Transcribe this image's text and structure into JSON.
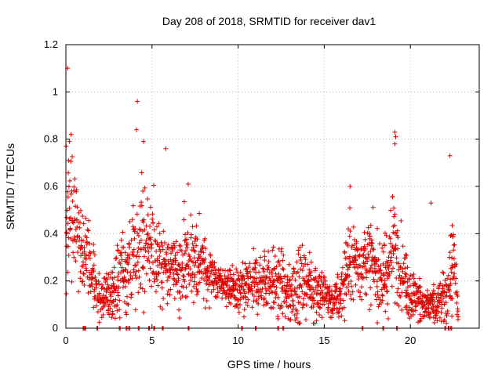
{
  "chart_data": {
    "type": "scatter",
    "title": "Day 208 of 2018, SRMTID for receiver dav1",
    "xlabel": "GPS time / hours",
    "ylabel": "SRMTID / TECUs",
    "xlim": [
      0,
      24
    ],
    "ylim": [
      0,
      1.2
    ],
    "x_ticks": [
      0,
      5,
      10,
      15,
      20
    ],
    "y_ticks": [
      0,
      0.2,
      0.4,
      0.6,
      0.8,
      1,
      1.2
    ],
    "x_tick_labels": [
      "0",
      "5",
      "10",
      "15",
      "20"
    ],
    "y_tick_labels": [
      "0",
      "0.2",
      "0.4",
      "0.6",
      "0.8",
      "1",
      "1.2"
    ],
    "grid": true,
    "marker": "+",
    "series": [
      {
        "name": "SRMTID",
        "color": "#e00000",
        "sample_step_hours": 0.03,
        "envelope": [
          [
            0.0,
            0.38,
            0.2
          ],
          [
            0.3,
            0.5,
            0.18
          ],
          [
            0.6,
            0.45,
            0.12
          ],
          [
            1.0,
            0.35,
            0.1
          ],
          [
            1.5,
            0.22,
            0.08
          ],
          [
            2.0,
            0.14,
            0.06
          ],
          [
            2.5,
            0.13,
            0.07
          ],
          [
            3.0,
            0.2,
            0.1
          ],
          [
            3.5,
            0.22,
            0.1
          ],
          [
            4.0,
            0.3,
            0.13
          ],
          [
            4.5,
            0.38,
            0.16
          ],
          [
            5.0,
            0.32,
            0.12
          ],
          [
            5.5,
            0.3,
            0.12
          ],
          [
            6.0,
            0.25,
            0.1
          ],
          [
            6.5,
            0.24,
            0.09
          ],
          [
            7.0,
            0.28,
            0.12
          ],
          [
            7.5,
            0.3,
            0.1
          ],
          [
            8.0,
            0.25,
            0.08
          ],
          [
            8.5,
            0.22,
            0.07
          ],
          [
            9.0,
            0.19,
            0.05
          ],
          [
            9.5,
            0.18,
            0.05
          ],
          [
            10.0,
            0.15,
            0.06
          ],
          [
            10.5,
            0.16,
            0.07
          ],
          [
            11.0,
            0.19,
            0.08
          ],
          [
            11.5,
            0.2,
            0.08
          ],
          [
            12.0,
            0.2,
            0.08
          ],
          [
            12.5,
            0.19,
            0.09
          ],
          [
            13.0,
            0.12,
            0.08
          ],
          [
            13.5,
            0.2,
            0.09
          ],
          [
            14.0,
            0.2,
            0.08
          ],
          [
            14.5,
            0.16,
            0.08
          ],
          [
            15.0,
            0.14,
            0.06
          ],
          [
            15.5,
            0.1,
            0.04
          ],
          [
            16.0,
            0.16,
            0.08
          ],
          [
            16.5,
            0.3,
            0.1
          ],
          [
            17.0,
            0.25,
            0.1
          ],
          [
            17.5,
            0.3,
            0.11
          ],
          [
            18.0,
            0.25,
            0.1
          ],
          [
            18.5,
            0.22,
            0.1
          ],
          [
            19.0,
            0.35,
            0.14
          ],
          [
            19.5,
            0.25,
            0.1
          ],
          [
            20.0,
            0.15,
            0.07
          ],
          [
            20.5,
            0.12,
            0.06
          ],
          [
            21.0,
            0.1,
            0.05
          ],
          [
            21.5,
            0.08,
            0.05
          ],
          [
            22.0,
            0.12,
            0.08
          ],
          [
            22.5,
            0.3,
            0.12
          ],
          [
            22.8,
            0.05,
            0.03
          ]
        ],
        "outliers": [
          [
            0.1,
            1.1
          ],
          [
            0.3,
            0.82
          ],
          [
            0.2,
            0.79
          ],
          [
            0.15,
            0.71
          ],
          [
            4.15,
            0.96
          ],
          [
            4.1,
            0.84
          ],
          [
            4.5,
            0.79
          ],
          [
            5.8,
            0.76
          ],
          [
            19.1,
            0.83
          ],
          [
            19.15,
            0.81
          ],
          [
            19.1,
            0.78
          ],
          [
            22.3,
            0.73
          ],
          [
            21.2,
            0.53
          ],
          [
            7.1,
            0.61
          ],
          [
            16.5,
            0.6
          ]
        ],
        "zero_points": [
          1.0,
          1.1,
          1.8,
          3.1,
          3.5,
          3.65,
          4.2,
          4.8,
          5.1,
          5.6,
          7.1,
          10.2,
          11.0,
          12.3,
          12.6,
          17.2,
          18.4,
          19.2,
          22.0,
          22.2,
          22.35
        ]
      }
    ]
  }
}
